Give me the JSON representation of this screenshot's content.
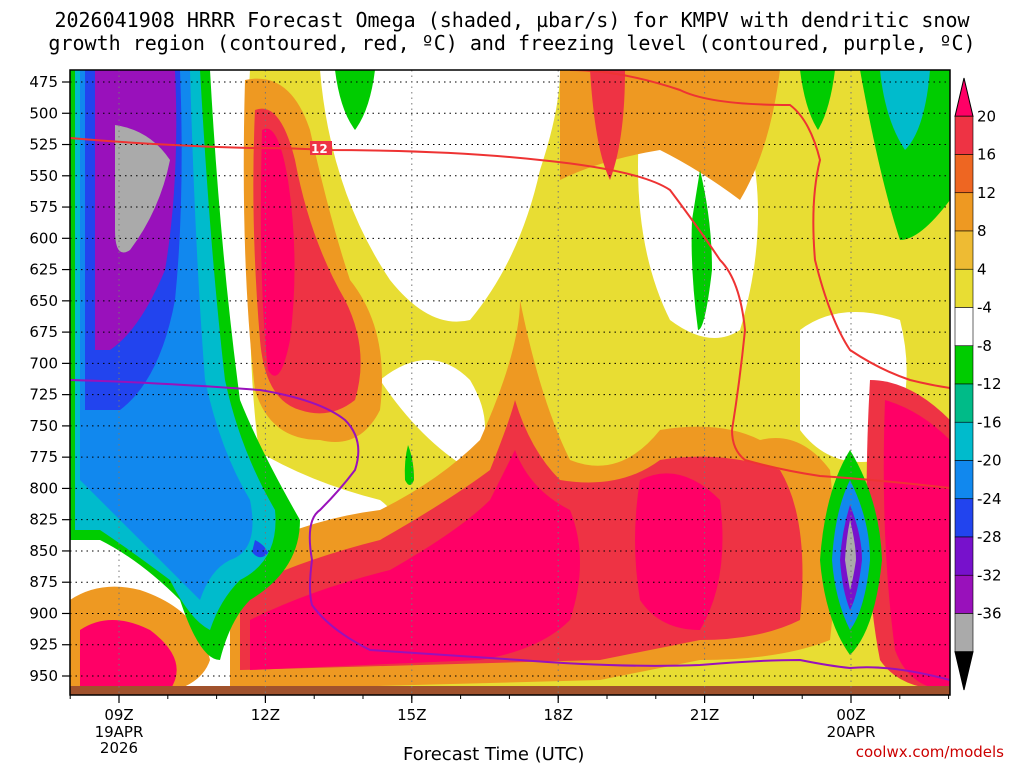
{
  "chart_data": {
    "type": "heatmap",
    "title_line1": "2026041908 HRRR Forecast Omega (shaded, µbar/s) for KMPV with dendritic snow",
    "title_line2": "growth region (contoured, red, ºC) and freezing level (contoured, purple, ºC)",
    "xlabel": "Forecast Time (UTC)",
    "ylabel": "",
    "x_ticks": [
      {
        "label": "09Z",
        "sub": [
          "19APR",
          "2026"
        ]
      },
      {
        "label": "12Z",
        "sub": []
      },
      {
        "label": "15Z",
        "sub": []
      },
      {
        "label": "18Z",
        "sub": []
      },
      {
        "label": "21Z",
        "sub": []
      },
      {
        "label": "00Z",
        "sub": [
          "20APR"
        ]
      }
    ],
    "y_ticks": [
      "475",
      "500",
      "525",
      "550",
      "575",
      "600",
      "625",
      "650",
      "675",
      "700",
      "725",
      "750",
      "775",
      "800",
      "825",
      "850",
      "875",
      "900",
      "925",
      "950"
    ],
    "colorbar": {
      "labels": [
        "20",
        "16",
        "12",
        "8",
        "4",
        "-4",
        "-8",
        "-12",
        "-16",
        "-20",
        "-24",
        "-28",
        "-32",
        "-36"
      ],
      "colors": [
        "#ff0066",
        "#ee3344",
        "#ee6622",
        "#ee9922",
        "#eebb33",
        "#e8dd33",
        "#ffffff",
        "#00cc00",
        "#00bb88",
        "#00bbcc",
        "#1188ee",
        "#2244ee",
        "#7711cc",
        "#9911bb",
        "#aaaaaa",
        "#000000"
      ]
    },
    "contour_label": "12",
    "credit": "coolwx.com/models"
  }
}
